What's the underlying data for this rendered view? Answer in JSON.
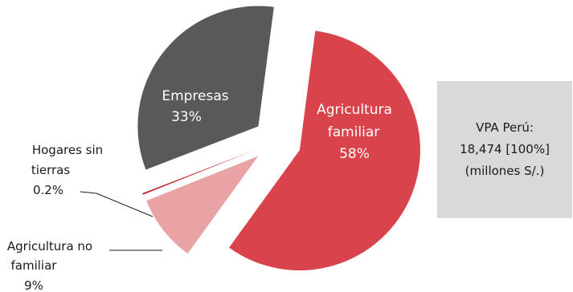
{
  "chart_data": {
    "type": "pie",
    "slices": [
      {
        "label": "Agricultura familiar",
        "value": 58,
        "value_label": "58%",
        "color": "#d9434b"
      },
      {
        "label": "Agricultura no familiar",
        "value": 9,
        "value_label": "9%",
        "color": "#e9a3a4"
      },
      {
        "label": "Hogares sin tierras",
        "value": 0.2,
        "value_label": "0.2%",
        "color": "#c0202a"
      },
      {
        "label": "Empresas",
        "value": 33,
        "value_label": "33%",
        "color": "#595959"
      }
    ],
    "labels": {
      "agricultura_familiar": [
        "Agricultura",
        "familiar",
        "58%"
      ],
      "empresas": [
        "Empresas",
        "33%"
      ],
      "hogares_sin_tierras": [
        "Hogares sin",
        "tierras",
        "0.2%"
      ],
      "agricultura_no_familiar": [
        "Agricultura no",
        "familiar",
        "9%"
      ]
    }
  },
  "info_box": {
    "line1": "VPA Perú:",
    "line2": "18,474 [100%]",
    "line3": "(millones S/.)"
  }
}
